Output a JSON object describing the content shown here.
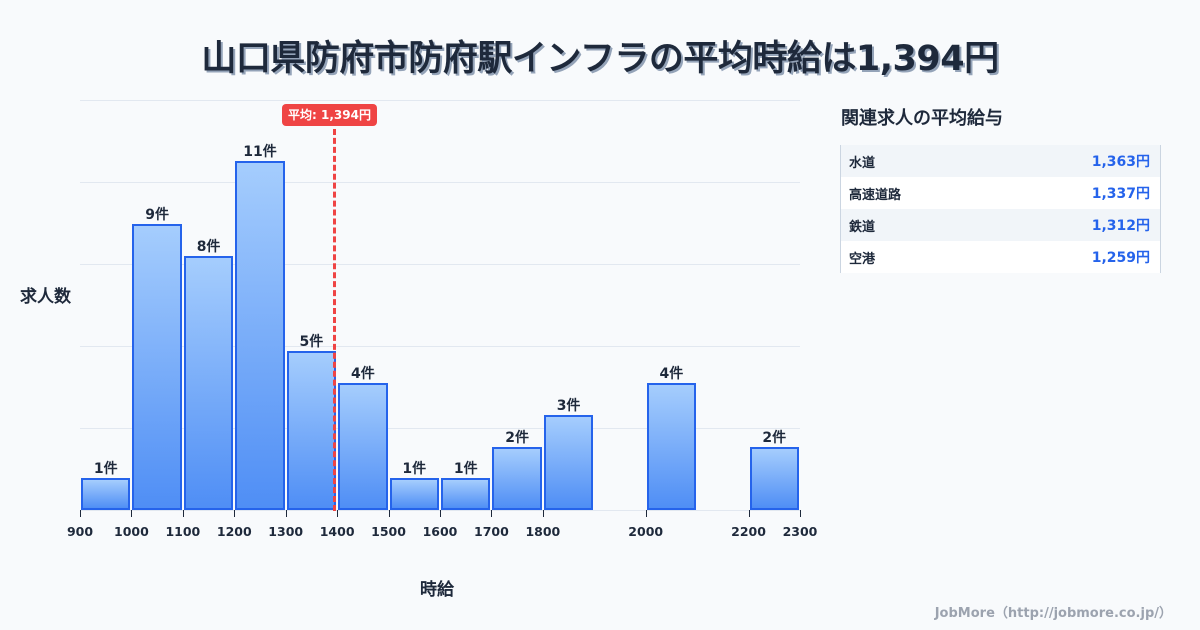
{
  "title": "山口県防府市防府駅インフラの平均時給は1,394円",
  "chart_data": {
    "type": "bar",
    "title": "山口県防府市防府駅インフラの平均時給は1,394円",
    "xlabel": "時給",
    "ylabel": "求人数",
    "x_range": [
      900,
      2300
    ],
    "bins": [
      {
        "start": 900,
        "end": 1000,
        "count": 1,
        "label": "1件"
      },
      {
        "start": 1000,
        "end": 1100,
        "count": 9,
        "label": "9件"
      },
      {
        "start": 1100,
        "end": 1200,
        "count": 8,
        "label": "8件"
      },
      {
        "start": 1200,
        "end": 1300,
        "count": 11,
        "label": "11件"
      },
      {
        "start": 1300,
        "end": 1400,
        "count": 5,
        "label": "5件"
      },
      {
        "start": 1400,
        "end": 1500,
        "count": 4,
        "label": "4件"
      },
      {
        "start": 1500,
        "end": 1600,
        "count": 1,
        "label": "1件"
      },
      {
        "start": 1600,
        "end": 1700,
        "count": 1,
        "label": "1件"
      },
      {
        "start": 1700,
        "end": 1800,
        "count": 2,
        "label": "2件"
      },
      {
        "start": 1800,
        "end": 1900,
        "count": 3,
        "label": "3件"
      },
      {
        "start": 2000,
        "end": 2100,
        "count": 4,
        "label": "4件"
      },
      {
        "start": 2200,
        "end": 2300,
        "count": 2,
        "label": "2件"
      }
    ],
    "categories": [
      "900-1000",
      "1000-1100",
      "1100-1200",
      "1200-1300",
      "1300-1400",
      "1400-1500",
      "1500-1600",
      "1600-1700",
      "1700-1800",
      "1800-1900",
      "2000-2100",
      "2200-2300"
    ],
    "values": [
      1,
      9,
      8,
      11,
      5,
      4,
      1,
      1,
      2,
      3,
      4,
      2
    ],
    "x_ticks": [
      "900",
      "1000",
      "1100",
      "1200",
      "1300",
      "1400",
      "1500",
      "1600",
      "1700",
      "1800",
      "2000",
      "2200",
      "2300"
    ],
    "x_tick_values": [
      900,
      1000,
      1100,
      1200,
      1300,
      1400,
      1500,
      1600,
      1700,
      1800,
      2000,
      2200,
      2300
    ],
    "average": {
      "value": 1394,
      "label": "平均: 1,394円",
      "color": "#ef4444"
    },
    "grid": true,
    "bar_color": "#2563eb"
  },
  "related": {
    "title": "関連求人の平均給与",
    "rows": [
      {
        "name": "水道",
        "value": "1,363円"
      },
      {
        "name": "高速道路",
        "value": "1,337円"
      },
      {
        "name": "鉄道",
        "value": "1,312円"
      },
      {
        "name": "空港",
        "value": "1,259円"
      }
    ]
  },
  "credit": "JobMore（http://jobmore.co.jp/）"
}
